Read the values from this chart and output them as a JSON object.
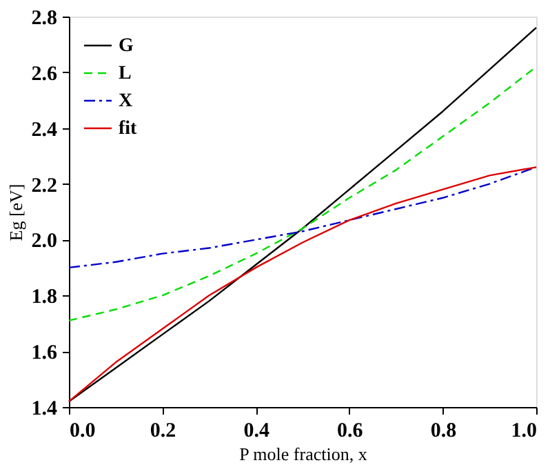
{
  "chart_data": {
    "type": "line",
    "xlabel": "P mole fraction, x",
    "ylabel": "Eg [eV]",
    "x": [
      0.0,
      0.1,
      0.2,
      0.3,
      0.4,
      0.5,
      0.6,
      0.7,
      0.8,
      0.9,
      1.0
    ],
    "series": [
      {
        "name": "G",
        "color": "#000000",
        "line_style": "solid",
        "values": [
          1.42,
          1.54,
          1.66,
          1.78,
          1.91,
          2.04,
          2.18,
          2.32,
          2.46,
          2.61,
          2.76
        ]
      },
      {
        "name": "L",
        "color": "#00dd00",
        "line_style": "dashed",
        "values": [
          1.71,
          1.75,
          1.8,
          1.87,
          1.95,
          2.04,
          2.15,
          2.25,
          2.37,
          2.49,
          2.62
        ]
      },
      {
        "name": "X",
        "color": "#0000cc",
        "line_style": "dashdot",
        "values": [
          1.9,
          1.92,
          1.95,
          1.97,
          2.0,
          2.03,
          2.07,
          2.11,
          2.15,
          2.2,
          2.26
        ]
      },
      {
        "name": "fit",
        "color": "#dd0000",
        "line_style": "solid",
        "values": [
          1.42,
          1.56,
          1.68,
          1.8,
          1.9,
          1.99,
          2.07,
          2.13,
          2.18,
          2.23,
          2.26
        ]
      }
    ],
    "xlim": [
      0.0,
      1.0
    ],
    "xticks": [
      {
        "value": 0,
        "label": "0.0"
      },
      0.2,
      0.4,
      0.6,
      0.8,
      {
        "value": 1,
        "label": "1.0"
      }
    ],
    "ylim": [
      1.4,
      2.8
    ],
    "yticks": [
      1.4,
      1.6,
      {
        "value": 1.8,
        "label": "1.8"
      },
      {
        "value": 2,
        "label": "2.0"
      },
      2.2,
      2.4,
      2.6,
      2.8
    ],
    "grid": false,
    "legend": "top left",
    "marker": "none"
  }
}
